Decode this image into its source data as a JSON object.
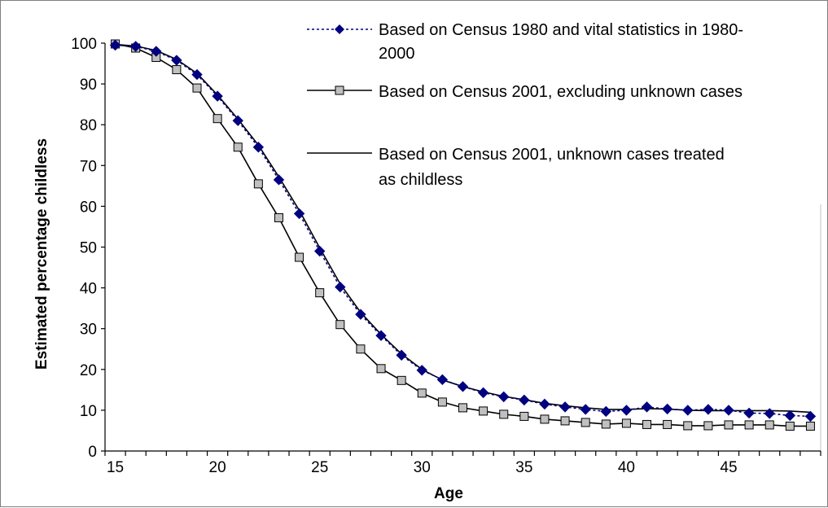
{
  "chart_data": {
    "type": "line",
    "title": "",
    "xlabel": "Age",
    "ylabel": "Estimated percentage childless",
    "xlim": [
      15,
      49
    ],
    "ylim": [
      0,
      100
    ],
    "x_ticks": [
      "15",
      "20",
      "25",
      "30",
      "35",
      "40",
      "45"
    ],
    "y_ticks": [
      "0",
      "10",
      "20",
      "30",
      "40",
      "50",
      "60",
      "70",
      "80",
      "90",
      "100"
    ],
    "legend_position": "top-right",
    "grid": false,
    "x": [
      15,
      16,
      17,
      18,
      19,
      20,
      21,
      22,
      23,
      24,
      25,
      26,
      27,
      28,
      29,
      30,
      31,
      32,
      33,
      34,
      35,
      36,
      37,
      38,
      39,
      40,
      41,
      42,
      43,
      44,
      45,
      46,
      47,
      48,
      49
    ],
    "series": [
      {
        "name": "Based on Census 1980 and vital statistics in 1980-2000",
        "legend_lines": [
          "Based on Census 1980 and vital statistics in 1980-",
          "2000"
        ],
        "color": "#000080",
        "marker": "diamond",
        "line_style": "dotted",
        "values": [
          99.5,
          99.2,
          98.0,
          95.8,
          92.3,
          87.0,
          81.0,
          74.5,
          66.5,
          58.2,
          49.0,
          40.2,
          33.5,
          28.3,
          23.5,
          19.8,
          17.5,
          15.8,
          14.3,
          13.3,
          12.5,
          11.5,
          10.8,
          10.2,
          9.7,
          10.0,
          10.8,
          10.3,
          10.0,
          10.2,
          10.0,
          9.3,
          9.2,
          8.7,
          8.5
        ]
      },
      {
        "name": "Based on Census 2001, excluding unknown cases",
        "legend_lines": [
          "Based on Census 2001, excluding unknown cases"
        ],
        "color": "#000000",
        "marker_fill": "#c0c0c0",
        "marker": "square",
        "line_style": "solid",
        "values": [
          99.8,
          98.8,
          96.5,
          93.5,
          89.0,
          81.5,
          74.5,
          65.5,
          57.2,
          47.5,
          38.8,
          31.0,
          25.0,
          20.2,
          17.3,
          14.2,
          12.0,
          10.6,
          9.8,
          9.0,
          8.5,
          7.8,
          7.4,
          7.0,
          6.6,
          6.8,
          6.5,
          6.5,
          6.2,
          6.2,
          6.4,
          6.4,
          6.4,
          6.1,
          6.1
        ]
      },
      {
        "name": "Based on Census 2001, unknown cases treated as childless",
        "legend_lines": [
          "Based on Census 2001, unknown cases treated",
          "as childless"
        ],
        "color": "#000000",
        "marker": "none",
        "line_style": "solid",
        "values": [
          99.7,
          99.3,
          98.2,
          96.0,
          92.6,
          87.3,
          81.4,
          75.0,
          67.2,
          59.0,
          49.8,
          41.0,
          34.0,
          28.6,
          23.8,
          20.0,
          17.4,
          15.8,
          14.5,
          13.4,
          12.6,
          11.7,
          11.1,
          10.6,
          10.2,
          10.2,
          10.4,
          10.3,
          10.0,
          9.9,
          9.9,
          9.9,
          9.9,
          9.8,
          9.5
        ]
      }
    ]
  }
}
